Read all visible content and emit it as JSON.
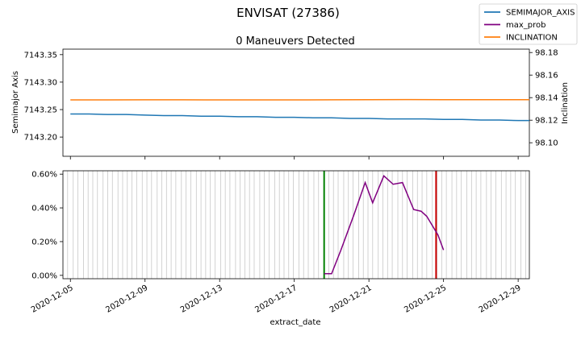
{
  "chart_data": [
    {
      "type": "line",
      "title": "ENVISAT (27386)",
      "subtitle": "0 Maneuvers Detected",
      "ylabel": "Semimajor Axis",
      "y2label": "Inclination",
      "ylim": [
        7143.165,
        7143.36
      ],
      "y2lim": [
        98.088,
        98.183
      ],
      "yticks": [
        "7143.20",
        "7143.25",
        "7143.30",
        "7143.35"
      ],
      "y2ticks": [
        "98.10",
        "98.12",
        "98.14",
        "98.16",
        "98.18"
      ],
      "grid": false,
      "legend": "top-right, outside figure",
      "legend_entries": [
        {
          "name": "SEMIMAJOR_AXIS",
          "color": "#1f77b4"
        },
        {
          "name": "max_prob",
          "color": "#800080"
        },
        {
          "name": "INCLINATION",
          "color": "#ff7f0e"
        }
      ],
      "series": [
        {
          "name": "SEMIMAJOR_AXIS",
          "color": "#1f77b4",
          "axis": "left",
          "x": [
            "2020-12-05",
            "2020-12-06",
            "2020-12-07",
            "2020-12-08",
            "2020-12-09",
            "2020-12-10",
            "2020-12-11",
            "2020-12-12",
            "2020-12-13",
            "2020-12-14",
            "2020-12-15",
            "2020-12-16",
            "2020-12-17",
            "2020-12-18",
            "2020-12-19",
            "2020-12-20",
            "2020-12-21",
            "2020-12-22",
            "2020-12-23",
            "2020-12-24",
            "2020-12-25",
            "2020-12-26",
            "2020-12-27",
            "2020-12-28",
            "2020-12-29",
            "2020-12-29.6"
          ],
          "values": [
            7143.242,
            7143.242,
            7143.241,
            7143.241,
            7143.24,
            7143.239,
            7143.239,
            7143.238,
            7143.238,
            7143.237,
            7143.237,
            7143.236,
            7143.236,
            7143.235,
            7143.235,
            7143.234,
            7143.234,
            7143.233,
            7143.233,
            7143.233,
            7143.232,
            7143.232,
            7143.231,
            7143.231,
            7143.23,
            7143.23
          ]
        },
        {
          "name": "INCLINATION",
          "color": "#ff7f0e",
          "axis": "right",
          "x": [
            "2020-12-05",
            "2020-12-07",
            "2020-12-09",
            "2020-12-11",
            "2020-12-13",
            "2020-12-15",
            "2020-12-17",
            "2020-12-19",
            "2020-12-21",
            "2020-12-23",
            "2020-12-25",
            "2020-12-27",
            "2020-12-29.6"
          ],
          "values": [
            98.138,
            98.138,
            98.1381,
            98.1381,
            98.138,
            98.138,
            98.138,
            98.1381,
            98.1382,
            98.1383,
            98.1382,
            98.1382,
            98.1382
          ]
        }
      ]
    },
    {
      "type": "line",
      "xlabel": "extract_date",
      "ylim": [
        -0.0002,
        0.0062
      ],
      "yticks": [
        "0.00%",
        "0.20%",
        "0.40%",
        "0.60%"
      ],
      "xticks": [
        "2020-12-05",
        "2020-12-09",
        "2020-12-13",
        "2020-12-17",
        "2020-12-21",
        "2020-12-25",
        "2020-12-29"
      ],
      "xlim": [
        "2020-12-04.6",
        "2020-12-29.6"
      ],
      "series": [
        {
          "name": "max_prob",
          "color": "#800080",
          "x": [
            "2020-12-18.6",
            "2020-12-19.0",
            "2020-12-19.5",
            "2020-12-20.2",
            "2020-12-20.8",
            "2020-12-21.2",
            "2020-12-21.8",
            "2020-12-22.3",
            "2020-12-22.8",
            "2020-12-23.4",
            "2020-12-23.8",
            "2020-12-24.1",
            "2020-12-24.7",
            "2020-12-25.0"
          ],
          "values": [
            0.0001,
            0.0001,
            0.0015,
            0.0036,
            0.0055,
            0.0043,
            0.0059,
            0.0054,
            0.0055,
            0.0039,
            0.0038,
            0.0035,
            0.0024,
            0.0015
          ]
        }
      ],
      "vertical_lines": [
        {
          "x": "2020-12-18.6",
          "color": "#008000"
        },
        {
          "x": "2020-12-24.6",
          "color": "#cc0000"
        }
      ],
      "observation_lines_x": [
        4.6,
        4.85,
        5.15,
        5.4,
        5.7,
        5.95,
        6.2,
        6.45,
        6.75,
        7.0,
        7.25,
        7.55,
        7.8,
        8.05,
        8.3,
        8.55,
        8.85,
        9.1,
        9.35,
        9.65,
        9.9,
        10.15,
        10.4,
        10.65,
        10.95,
        11.2,
        11.45,
        11.75,
        12.0,
        12.25,
        12.5,
        12.75,
        13.05,
        13.3,
        13.55,
        13.85,
        14.1,
        14.35,
        14.6,
        14.85,
        15.15,
        15.4,
        15.65,
        15.95,
        16.2,
        16.45,
        16.7,
        16.95,
        17.25,
        17.5,
        17.75,
        18.05,
        18.3,
        18.6,
        18.85,
        19.1,
        19.35,
        19.65,
        19.9,
        20.15,
        20.45,
        20.7,
        20.95,
        21.2,
        21.5,
        21.75,
        22.0,
        22.25,
        22.55,
        22.8,
        23.05,
        23.35,
        23.6,
        23.85,
        24.1,
        24.4,
        24.65,
        24.9,
        25.15,
        25.45,
        25.7,
        25.95,
        26.25,
        26.5,
        26.75,
        27.0,
        27.3,
        27.55,
        27.8,
        28.1,
        28.35,
        28.6,
        28.85,
        29.15,
        29.4
      ]
    }
  ]
}
